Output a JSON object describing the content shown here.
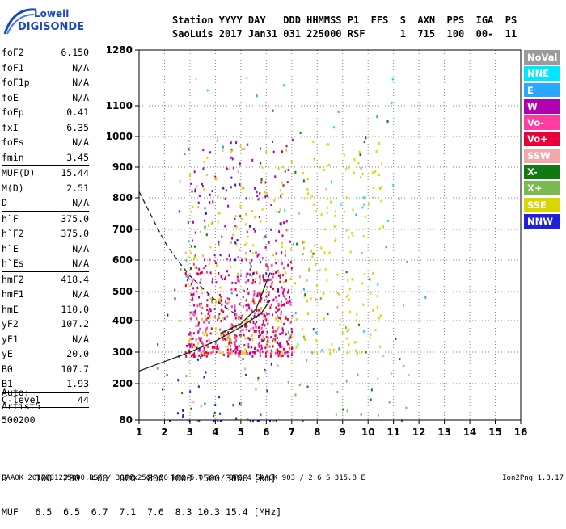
{
  "logo": {
    "line1": "Lowell",
    "line2": "DIGISONDE"
  },
  "header": {
    "labels": "Station YYYY DAY   DDD HHMMSS P1  FFS  S  AXN  PPS  IGA  PS",
    "values": "SaoLuis 2017 Jan31 031 225000 RSF      1  715  100  00-  11"
  },
  "params": [
    {
      "name": "foF2",
      "value": "6.150"
    },
    {
      "name": "foF1",
      "value": "N/A"
    },
    {
      "name": "foF1p",
      "value": "N/A"
    },
    {
      "name": "foE",
      "value": "N/A"
    },
    {
      "name": "foEp",
      "value": "0.41"
    },
    {
      "name": "fxI",
      "value": "6.35"
    },
    {
      "name": "foEs",
      "value": "N/A"
    },
    {
      "name": "fmin",
      "value": "3.45"
    },
    {
      "name": "MUF(D)",
      "value": "15.44",
      "sep": true
    },
    {
      "name": "M(D)",
      "value": "2.51"
    },
    {
      "name": "D",
      "value": "N/A"
    },
    {
      "name": "h`F",
      "value": "375.0",
      "sep": true
    },
    {
      "name": "h`F2",
      "value": "375.0"
    },
    {
      "name": "h`E",
      "value": "N/A"
    },
    {
      "name": "h`Es",
      "value": "N/A"
    },
    {
      "name": "hmF2",
      "value": "418.4",
      "sep": true
    },
    {
      "name": "hmF1",
      "value": "N/A"
    },
    {
      "name": "hmE",
      "value": "110.0"
    },
    {
      "name": "yF2",
      "value": "107.2"
    },
    {
      "name": "yF1",
      "value": "N/A"
    },
    {
      "name": "yE",
      "value": "20.0"
    },
    {
      "name": "B0",
      "value": "107.7"
    },
    {
      "name": "B1",
      "value": "1.93"
    },
    {
      "name": "C-level",
      "value": "44",
      "sep": true
    }
  ],
  "auto": {
    "line1": "Auto:",
    "line2": "Artist5",
    "line3": "500200"
  },
  "legend": [
    {
      "label": "NoVal",
      "color": "#9a9a9a"
    },
    {
      "label": "NNE",
      "color": "#00e8ff"
    },
    {
      "label": "E",
      "color": "#2aa8ff"
    },
    {
      "label": "W",
      "color": "#b000b0"
    },
    {
      "label": "Vo-",
      "color": "#ff3aa0"
    },
    {
      "label": "Vo+",
      "color": "#e8003a"
    },
    {
      "label": "SSW",
      "color": "#f2a8a8"
    },
    {
      "label": "X-",
      "color": "#107a10"
    },
    {
      "label": "X+",
      "color": "#7ab850"
    },
    {
      "label": "SSE",
      "color": "#d8d800"
    },
    {
      "label": "NNW",
      "color": "#2020d8"
    }
  ],
  "muf_table": {
    "d_row": "D     100  200  400  600  800 1000 1500 3000 [km]",
    "muf_row": "MUF   6.5  6.5  6.7  7.1  7.6  8.3 10.3 15.4 [MHz]"
  },
  "footer": "SAA0K_2017031225000.RSF / 300fx256h 50 kHz 5.0 km / DPS-4 SAA0K 903 / 2.6 S 315.8 E",
  "version": "Ion2Png 1.3.17",
  "chart_data": {
    "type": "scatter",
    "x_ticks": [
      1,
      2,
      3,
      4,
      5,
      6,
      7,
      8,
      9,
      10,
      11,
      12,
      13,
      14,
      15,
      16
    ],
    "xlim": [
      1,
      16
    ],
    "y_ticks": [
      80,
      100,
      200,
      300,
      400,
      500,
      600,
      700,
      800,
      900,
      1000,
      1100,
      1280
    ],
    "ylim": [
      80,
      1280
    ],
    "y_scale": "log-like ionogram height scale",
    "grid": true,
    "clusters": [
      {
        "mode": "Vo+",
        "color": "#e8003a",
        "x": [
          2.8,
          7.0
        ],
        "y": [
          290,
          600
        ],
        "n": 260
      },
      {
        "mode": "Vo-",
        "color": "#ff3aa0",
        "x": [
          3.0,
          7.0
        ],
        "y": [
          300,
          620
        ],
        "n": 180
      },
      {
        "mode": "W",
        "color": "#b000b0",
        "x": [
          2.9,
          7.0
        ],
        "y": [
          300,
          1000
        ],
        "n": 220
      },
      {
        "mode": "SSE",
        "color": "#d8d800",
        "x": [
          2.9,
          10.6
        ],
        "y": [
          300,
          1000
        ],
        "n": 300
      },
      {
        "mode": "NNW",
        "color": "#2020d8",
        "x": [
          2.0,
          6.5
        ],
        "y": [
          80,
          900
        ],
        "n": 60
      },
      {
        "mode": "X-",
        "color": "#107a10",
        "x": [
          1.5,
          11.6
        ],
        "y": [
          80,
          1100
        ],
        "n": 50
      },
      {
        "mode": "X+",
        "color": "#7ab850",
        "x": [
          2.4,
          11.6
        ],
        "y": [
          80,
          900
        ],
        "n": 40
      },
      {
        "mode": "SSW",
        "color": "#f2a8a8",
        "x": [
          2.5,
          11.6
        ],
        "y": [
          150,
          1200
        ],
        "n": 40
      },
      {
        "mode": "NNE",
        "color": "#00e8ff",
        "x": [
          2.5,
          11.6
        ],
        "y": [
          300,
          1200
        ],
        "n": 20
      },
      {
        "mode": "E",
        "color": "#2aa8ff",
        "x": [
          2.4,
          12.6
        ],
        "y": [
          300,
          1150
        ],
        "n": 20
      }
    ],
    "f_trace": {
      "x": [
        1.0,
        2.0,
        3.0,
        4.0,
        5.0,
        5.8,
        6.15
      ],
      "y": [
        240,
        270,
        300,
        335,
        380,
        425,
        470
      ]
    },
    "virtual_trace_dashed": {
      "x": [
        1.0,
        1.5,
        2.0,
        2.5,
        3.0,
        3.5,
        4.0,
        4.5,
        5.0
      ],
      "y": [
        820,
        740,
        660,
        600,
        550,
        510,
        470,
        440,
        410
      ]
    },
    "profile_curve": {
      "x": [
        4.2,
        5.0,
        5.6,
        6.15
      ],
      "y": [
        360,
        390,
        440,
        560
      ]
    }
  }
}
